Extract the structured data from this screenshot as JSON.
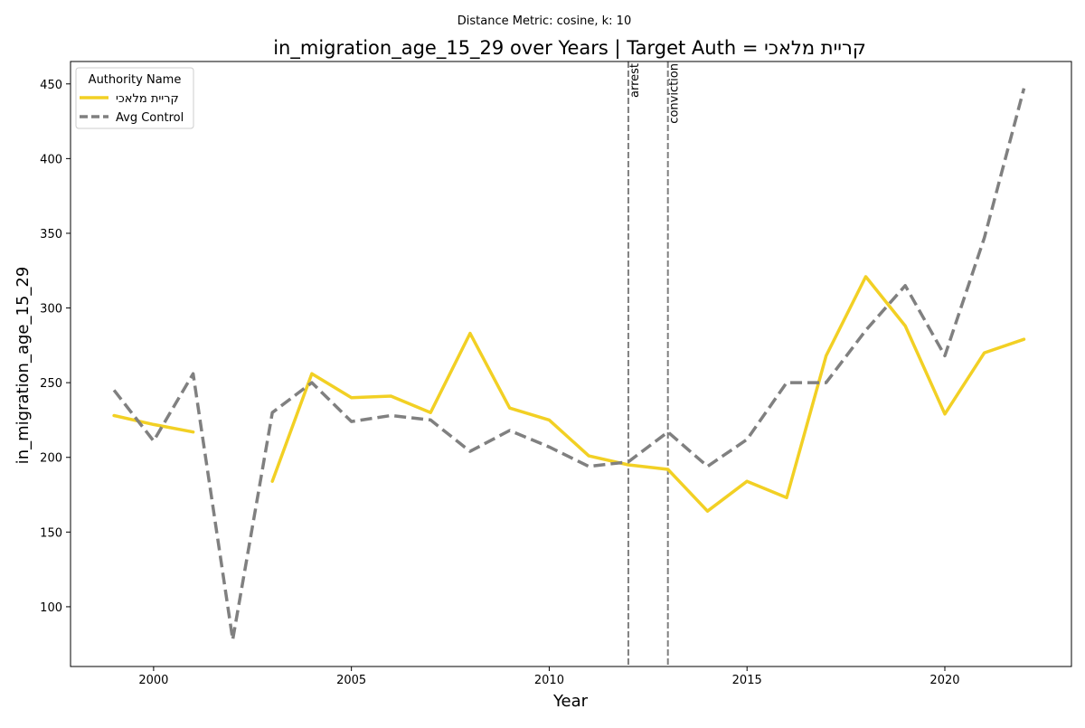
{
  "chart_data": {
    "type": "line",
    "suptitle": "Distance Metric: cosine, k: 10",
    "title": "in_migration_age_15_29 over Years | Target Auth = קריית מלאכי",
    "xlabel": "Year",
    "ylabel": "in_migration_age_15_29",
    "xlim": [
      1997.9,
      2023.2
    ],
    "ylim": [
      60,
      465
    ],
    "x_ticks": [
      2000,
      2005,
      2010,
      2015,
      2020
    ],
    "y_ticks": [
      100,
      150,
      200,
      250,
      300,
      350,
      400,
      450
    ],
    "grid": false,
    "legend": {
      "title": "Authority Name",
      "placement": "top-left"
    },
    "series": [
      {
        "name": "קריית מלאכי",
        "color": "#f2d024",
        "style": "solid",
        "points": [
          [
            1999,
            228
          ],
          [
            2000,
            222
          ],
          [
            2001,
            217
          ],
          [
            2003,
            184
          ],
          [
            2004,
            256
          ],
          [
            2005,
            240
          ],
          [
            2006,
            241
          ],
          [
            2007,
            230
          ],
          [
            2008,
            283
          ],
          [
            2009,
            233
          ],
          [
            2010,
            225
          ],
          [
            2011,
            201
          ],
          [
            2012,
            195
          ],
          [
            2013,
            192
          ],
          [
            2014,
            164
          ],
          [
            2015,
            184
          ],
          [
            2016,
            173
          ],
          [
            2017,
            268
          ],
          [
            2018,
            321
          ],
          [
            2019,
            288
          ],
          [
            2020,
            229
          ],
          [
            2021,
            270
          ],
          [
            2022,
            279
          ]
        ]
      },
      {
        "name": "Avg Control",
        "color": "#808080",
        "style": "dashed",
        "points": [
          [
            1999,
            245
          ],
          [
            2000,
            211
          ],
          [
            2001,
            256
          ],
          [
            2002,
            78
          ],
          [
            2003,
            230
          ],
          [
            2004,
            250
          ],
          [
            2005,
            224
          ],
          [
            2006,
            228
          ],
          [
            2007,
            225
          ],
          [
            2008,
            204
          ],
          [
            2009,
            218
          ],
          [
            2010,
            207
          ],
          [
            2011,
            194
          ],
          [
            2012,
            197
          ],
          [
            2013,
            217
          ],
          [
            2014,
            194
          ],
          [
            2015,
            212
          ],
          [
            2016,
            250
          ],
          [
            2017,
            250
          ],
          [
            2018,
            285
          ],
          [
            2019,
            315
          ],
          [
            2020,
            268
          ],
          [
            2021,
            347
          ],
          [
            2022,
            447
          ]
        ]
      }
    ],
    "events": [
      {
        "label": "arrest",
        "x": 2012
      },
      {
        "label": "conviction",
        "x": 2013
      }
    ]
  }
}
